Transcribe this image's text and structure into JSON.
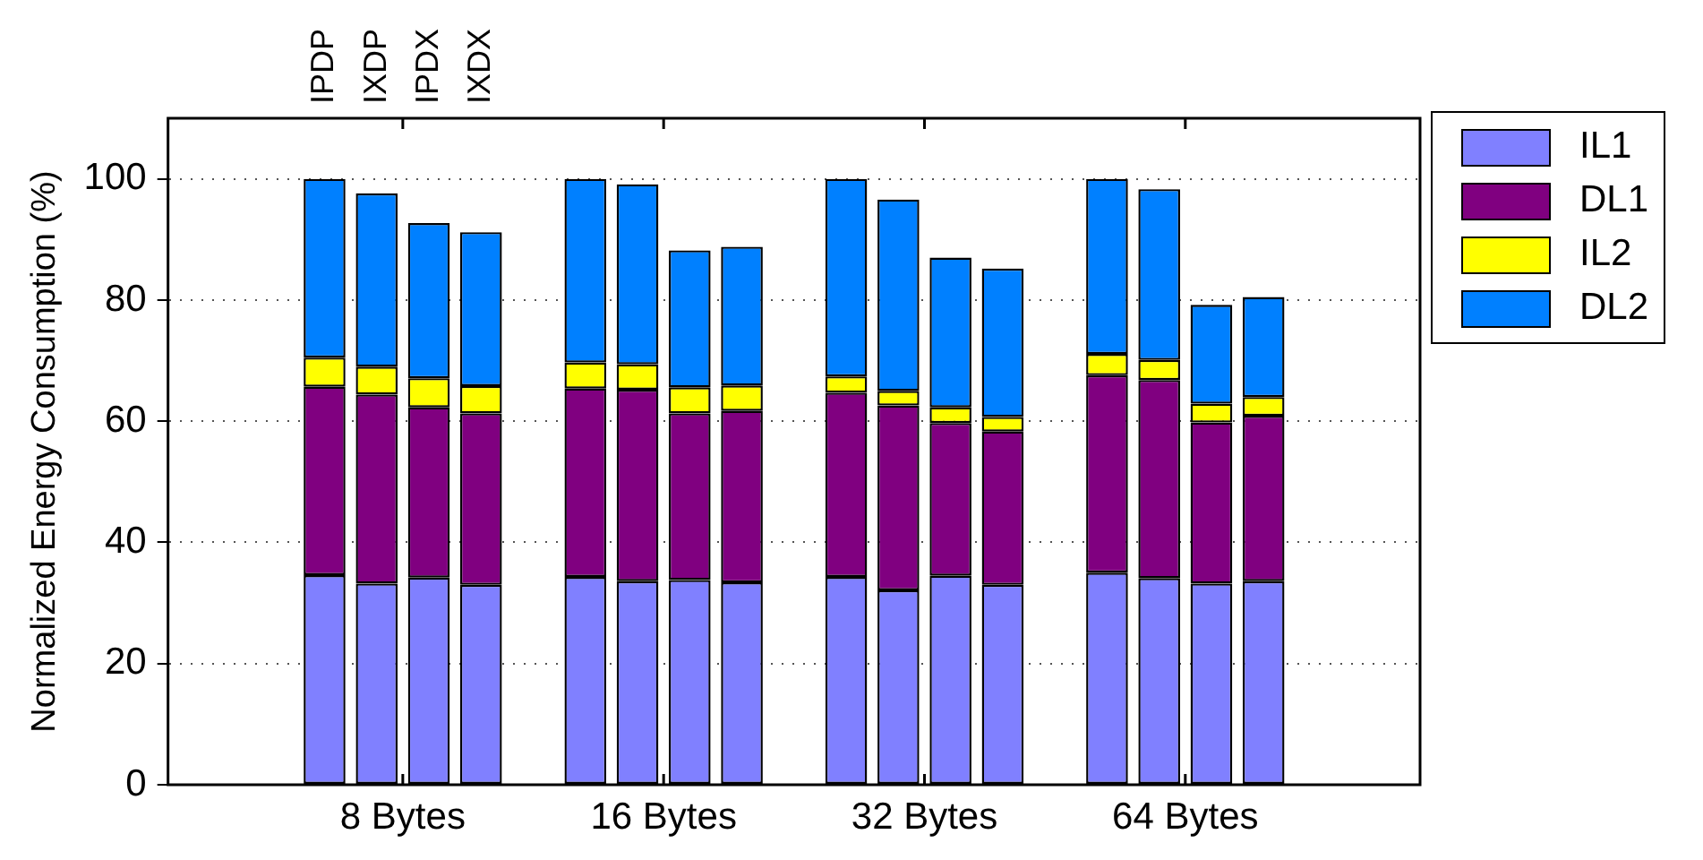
{
  "chart_data": {
    "type": "bar",
    "stacked": true,
    "ylabel": "Normalized Energy Consumption (%)",
    "categories": [
      "IPDP",
      "IXDP",
      "IPDX",
      "IXDX",
      null,
      null,
      null,
      null,
      null,
      null,
      null,
      null,
      null,
      null,
      null,
      null,
      null,
      null,
      null
    ],
    "annotations": [
      "8 Bytes",
      "16 Bytes",
      "32 Bytes",
      "64 Bytes"
    ],
    "series": [
      {
        "name": "IL1",
        "color": "#8080ff",
        "values": [
          34.6,
          33.2,
          34.2,
          33.0,
          null,
          34.3,
          33.6,
          33.8,
          33.4,
          null,
          34.3,
          32.1,
          34.5,
          33.0,
          null,
          35.0,
          34.1,
          33.2,
          33.6
        ]
      },
      {
        "name": "DL1",
        "color": "#800080",
        "values": [
          31.1,
          31.2,
          28.1,
          28.3,
          null,
          31.1,
          31.6,
          27.5,
          28.3,
          null,
          30.4,
          30.5,
          25.2,
          25.3,
          null,
          32.6,
          32.7,
          26.6,
          27.3
        ]
      },
      {
        "name": "IL2",
        "color": "#ffff00",
        "values": [
          4.8,
          4.6,
          4.8,
          4.5,
          null,
          4.3,
          4.2,
          4.3,
          4.2,
          null,
          2.7,
          2.4,
          2.6,
          2.4,
          null,
          3.5,
          3.3,
          3.1,
          3.1
        ]
      },
      {
        "name": "DL2",
        "color": "#0080ff",
        "values": [
          29.5,
          28.6,
          25.6,
          25.4,
          null,
          30.3,
          29.7,
          22.6,
          22.9,
          null,
          32.6,
          31.6,
          24.7,
          24.5,
          null,
          28.9,
          28.2,
          16.3,
          16.5
        ]
      }
    ],
    "ylim": [
      0,
      110
    ],
    "yticks": [
      0,
      20,
      40,
      60,
      80,
      100
    ],
    "grid": "y",
    "legend": "top right"
  }
}
